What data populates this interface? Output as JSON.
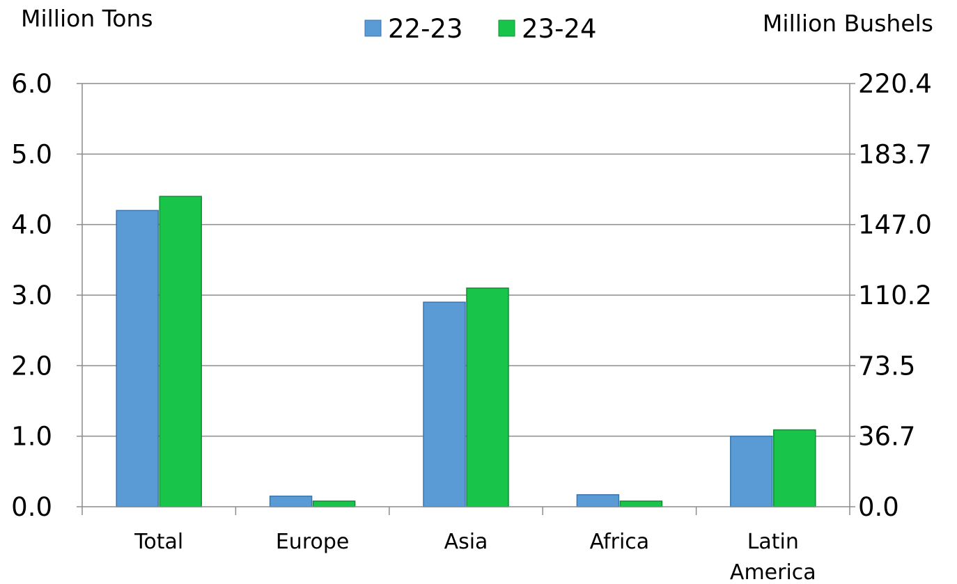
{
  "chart_data": {
    "type": "bar",
    "categories": [
      "Total",
      "Europe",
      "Asia",
      "Africa",
      "Latin America"
    ],
    "category_lines": [
      [
        "Total"
      ],
      [
        "Europe"
      ],
      [
        "Asia"
      ],
      [
        "Africa"
      ],
      [
        "Latin",
        "America"
      ]
    ],
    "series": [
      {
        "name": "22-23",
        "values": [
          4.2,
          0.15,
          2.9,
          0.17,
          1.0
        ],
        "color": "#5b9bd5"
      },
      {
        "name": "23-24",
        "values": [
          4.4,
          0.08,
          3.1,
          0.08,
          1.09
        ],
        "color": "#19c44a"
      }
    ],
    "ylabel_left": "Million Tons",
    "ylabel_right": "Million Bushels",
    "ylim": [
      0,
      6
    ],
    "yticks_left": [
      "0.0",
      "1.0",
      "2.0",
      "3.0",
      "4.0",
      "5.0",
      "6.0"
    ],
    "yticks_right": [
      "0.0",
      "36.7",
      "73.5",
      "110.2",
      "147.0",
      "183.7",
      "220.4"
    ],
    "grid": true,
    "legend_position": "top-center"
  }
}
